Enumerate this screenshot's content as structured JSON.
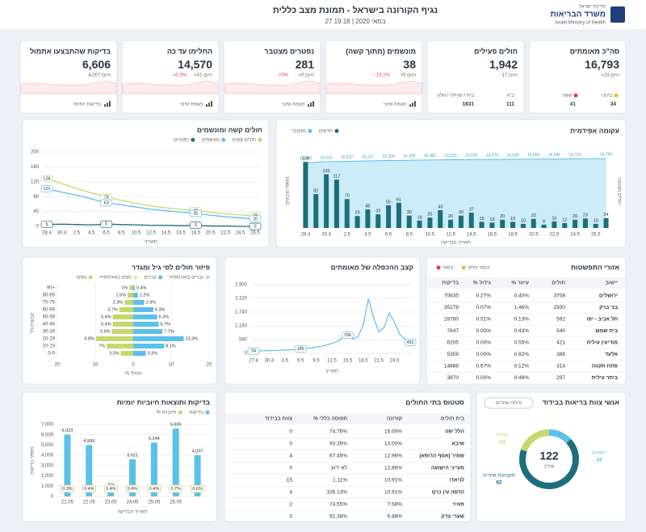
{
  "header": {
    "title": "נגיף הקורונה בישראל - תמונת מצב כללית",
    "subtitle": "27 במאי 2020 | 19:18",
    "logo": {
      "state": "מדינת ישראל",
      "ministry": "משרד הבריאות",
      "english": "Israel Ministry of Health"
    }
  },
  "kpis": [
    {
      "title": "סה\"כ מאומתים",
      "value": "16,793",
      "delta": "+24 היום",
      "breakdown": [
        {
          "label": "בינוני",
          "value": "34",
          "color": "#e6c229"
        },
        {
          "label": "קשה",
          "value": "41",
          "color": "#e8384f"
        }
      ]
    },
    {
      "title": "חולים פעילים",
      "value": "1,942",
      "delta": "-17 היום",
      "breakdown": [
        {
          "label": "ב\"ח",
          "value": "111"
        },
        {
          "label": "בית / קהילה / מלון",
          "value": "1831"
        }
      ]
    },
    {
      "title": "מונשמים (מתוך קשה)",
      "value": "38",
      "delta": "+5 היום",
      "delta_pct": "-15.2%",
      "footer": "מגמת שינוי"
    },
    {
      "title": "נפטרים מצטבר",
      "value": "281",
      "delta": "+0 היום",
      "delta_pct": "+0%",
      "footer": "מגמת שינוי"
    },
    {
      "title": "החלימו עד כה",
      "value": "14,570",
      "delta": "+41 היום",
      "delta_pct": "+0.3%",
      "footer": "מגמת שינוי"
    },
    {
      "title": "בדיקות שהתבצעו אתמול",
      "value": "6,606",
      "delta": "4,007 היום",
      "footer": "בדיקות יומיות"
    }
  ],
  "serious_chart": {
    "type": "line",
    "title": "חולים קשה ומונשמים",
    "xlabel": "תאריך",
    "grid": true,
    "categories": [
      "28.4",
      "30.4",
      "2.5",
      "4.5",
      "6.5",
      "8.5",
      "10.5",
      "12.5",
      "14.5",
      "16.5",
      "18.5",
      "20.5",
      "22.5",
      "24.5",
      "26.5"
    ],
    "ylim": [
      0,
      200
    ],
    "yticks": [
      0,
      40,
      80,
      120,
      160,
      200
    ],
    "series": [
      {
        "name": "חולים קשים",
        "color": "#c5d86d",
        "values": [
          128,
          115,
          102,
          90,
          78,
          70,
          62,
          55,
          50,
          46,
          42,
          38,
          34,
          31,
          28
        ]
      },
      {
        "name": "מונשמים",
        "color": "#5bc0eb",
        "values": [
          101,
          92,
          84,
          74,
          63,
          58,
          52,
          46,
          42,
          38,
          35,
          30,
          26,
          23,
          20
        ]
      },
      {
        "name": "נפטרים",
        "color": "#1f6f78",
        "values": [
          5,
          6,
          5,
          4,
          6,
          5,
          4,
          3,
          3,
          2,
          3,
          1,
          1,
          0,
          0
        ]
      }
    ]
  },
  "epi_chart": {
    "type": "bar",
    "title": "עקומה אפידמית",
    "xlabel": "תאריך הבדיקה",
    "ylabel": "מספר נדבקים",
    "y2label": "חולים מצטבר",
    "categories": [
      "28.4",
      null,
      "30.4",
      null,
      "2.5",
      null,
      "4.5",
      null,
      "6.5",
      null,
      "8.5",
      null,
      "10.5",
      null,
      "12.5",
      null,
      "14.5",
      null,
      "16.5",
      null,
      "18.5",
      null,
      "20.5",
      null,
      "22.5",
      null,
      "24.5",
      null,
      "26.5",
      null
    ],
    "ylim": [
      0,
      180
    ],
    "y2lim": [
      0,
      18000
    ],
    "series": [
      {
        "name": "חדשים",
        "color": "#1b6f7a",
        "values": [
          160,
          82,
          130,
          117,
          70,
          29,
          45,
          33,
          55,
          61,
          30,
          18,
          25,
          43,
          20,
          30,
          37,
          15,
          13,
          20,
          15,
          10,
          22,
          8,
          16,
          12,
          20,
          23,
          10,
          24
        ]
      },
      {
        "name": "מצטבר",
        "color": "#5bc0eb",
        "axis": "y2",
        "values": [
          15780,
          15900,
          16041,
          16090,
          16127,
          16180,
          16237,
          16290,
          16339,
          16365,
          16390,
          16430,
          16462,
          16490,
          16523,
          16540,
          16559,
          16570,
          16579,
          16605,
          16630,
          16645,
          16660,
          16672,
          16685,
          16700,
          16723,
          16750,
          16769,
          16793
        ],
        "value_labels": [
          "15,780",
          null,
          "16,041",
          null,
          "16,127",
          null,
          "16,237",
          null,
          "16,339",
          null,
          "16,390",
          null,
          "16,462",
          null,
          "16,523",
          null,
          "16,559",
          null,
          "16,579",
          null,
          "16,630",
          null,
          "16,660",
          null,
          "16,685",
          null,
          "16,723",
          null,
          null,
          "16,793"
        ]
      }
    ]
  },
  "age_chart": {
    "type": "bar",
    "orientation": "horizontal",
    "title": "פיזור חולים לפי גיל ומגדר",
    "xlabel": "% מכלל",
    "ylabel": "קבוצת גיל",
    "categories": [
      "90+",
      "80-89",
      "70-79",
      "60-69",
      "50-59",
      "40-49",
      "30-39",
      "20-29",
      "10-19",
      "0-9"
    ],
    "xlim": [
      0,
      20
    ],
    "xticks": [
      0,
      10,
      20
    ],
    "grid": true,
    "population_legend": [
      {
        "name": "גברים באוכלוסיה",
        "color": "#a9dcf3"
      },
      {
        "name": "נשים באוכלוסיה",
        "color": "#dde9ae"
      }
    ],
    "series": [
      {
        "name": "גברים",
        "color": "#5bc0eb",
        "values": [
          0.4,
          1.2,
          2.9,
          5.3,
          6.3,
          6.7,
          7.7,
          13.3,
          8.1,
          3.3
        ],
        "value_labels": [
          "0.4%",
          "1.2%",
          "2.9%",
          "5.3%",
          "6.3%",
          "6.7%",
          "7.7%",
          "13.3%",
          "8.1%",
          "3.3%"
        ]
      },
      {
        "name": "נשים",
        "color": "#c5d86d",
        "values": [
          1,
          1.5,
          2.3,
          3.7,
          5.4,
          5.4,
          5.6,
          9.8,
          7,
          3.3
        ],
        "value_labels": [
          "1%",
          "1.5%",
          "2.3%",
          "3.7%",
          "5.4%",
          "5.4%",
          "5.6%",
          "9.8%",
          "7%",
          "3.3%"
        ]
      }
    ]
  },
  "doubling_chart": {
    "type": "line",
    "title": "קצב ההכפלה של מאומתים",
    "xlabel": "תאריך",
    "color": "#5bc0eb",
    "grid": true,
    "categories": [
      "27.4",
      null,
      null,
      "30.4",
      null,
      null,
      "3.5",
      null,
      null,
      "6.5",
      null,
      null,
      "9.5",
      null,
      null,
      "12.5",
      null,
      null,
      "15.5",
      null,
      null,
      "18.5",
      null,
      null,
      "21.5",
      null,
      null,
      "24.5",
      null,
      null,
      null
    ],
    "values": [
      94,
      100,
      108,
      115,
      120,
      130,
      140,
      150,
      165,
      185,
      200,
      230,
      260,
      300,
      350,
      420,
      500,
      650,
      766,
      600,
      700,
      1200,
      2300,
      1500,
      900,
      1100,
      1700,
      1300,
      800,
      600,
      452
    ],
    "ylim": [
      0,
      2900
    ],
    "yticks": [
      0,
      580,
      {
        "value": 1160,
        "label": "1,160"
      },
      {
        "value": 1740,
        "label": "1,740"
      },
      {
        "value": 2320,
        "label": "2,320"
      },
      {
        "value": 2900,
        "label": "2,900"
      }
    ]
  },
  "regions": {
    "title": "אזורי התפשטות",
    "legend": [
      {
        "name": "בסגר",
        "color": "#e8384f"
      },
      {
        "name": "בסגר חלקי",
        "color": "#e6c229"
      }
    ],
    "columns": [
      "יישוב",
      "חולים",
      "% עיזור",
      "% גידול",
      "בדיקות"
    ],
    "rows": [
      [
        "ירושלים",
        "3708",
        "0.40%",
        "0.27%",
        "70635"
      ],
      [
        "בני ברק",
        "2930",
        "1.46%",
        "0.07%",
        "35279"
      ],
      [
        "תל אביב - יפו",
        "592",
        "0.13%",
        "0.51%",
        "28780"
      ],
      [
        "בית שמש",
        "540",
        "0.43%",
        "0.00%",
        "7647"
      ],
      [
        "מודיעין עילית",
        "421",
        "0.55%",
        "0.00%",
        "6205"
      ],
      [
        "אלעד",
        "388",
        "0.82%",
        "0.00%",
        "5359"
      ],
      [
        "פתח תקווה",
        "314",
        "0.12%",
        "0.67%",
        "14888"
      ],
      [
        "ביתר עילית",
        "297",
        "0.48%",
        "0.00%",
        "3870"
      ]
    ]
  },
  "tests_chart": {
    "type": "bar",
    "title": "בדיקות ותוצאות חיוביות יומיות",
    "xlabel": "תאריך הבדיקה",
    "ylabel": "מספר בדיקות",
    "categories": [
      "21.05",
      "22.05",
      "23.05",
      "24.05",
      "25.05",
      "26.05",
      null
    ],
    "ylim": [
      0,
      7000
    ],
    "yticks": [
      0,
      {
        "value": 1000,
        "label": "1,000"
      },
      {
        "value": 2000,
        "label": "2,000"
      },
      {
        "value": 3000,
        "label": "3,000"
      },
      {
        "value": 4000,
        "label": "4,000"
      },
      {
        "value": 5000,
        "label": "5,000"
      },
      {
        "value": 6000,
        "label": "6,000"
      },
      {
        "value": 7000,
        "label": "7,000"
      }
    ],
    "series": [
      {
        "name": "בדיקות",
        "color": "#5bc0eb",
        "values": [
          6023,
          4999,
          704,
          3621,
          5244,
          6606,
          4007
        ],
        "value_labels": [
          "6,023",
          "4,999",
          "704",
          "3,621",
          "5,244",
          "6,606",
          "4,007"
        ]
      },
      {
        "name": "% חיוביות",
        "color": "#c5d86d",
        "values": [
          0.3,
          0.4,
          0.4,
          0.4,
          0.4,
          0.7,
          0.6
        ],
        "value_labels": [
          "0.3%",
          "0.4%",
          "0.4%",
          "0.4%",
          "0.4%",
          "0.7%",
          "0.6%"
        ]
      }
    ]
  },
  "hospitals": {
    "title": "סטטוס בתי החולים",
    "columns": [
      "בית חולים",
      "קורונה",
      "% תפוסה כללי",
      "צוות בבידוד"
    ],
    "rows": [
      [
        "הלל יפה",
        "15.00%",
        "74.76%",
        "0"
      ],
      [
        "שיבא",
        "13.00%",
        "93.35%",
        "0"
      ],
      [
        "שמיר (אסף הרופא)",
        "12.96%",
        "67.45%",
        "4"
      ],
      [
        "מעייני הישועה",
        "12.86%",
        "לא ידוע",
        "0"
      ],
      [
        "לניאדו",
        "10.91%",
        "1.11%",
        "15"
      ],
      [
        "הדסה עין כרם",
        "10.91%",
        "105.13%",
        "4"
      ],
      [
        "מאיר",
        "7.58%",
        "74.55%",
        "2"
      ],
      [
        "שערי צדק",
        "5.88%",
        "92.38%",
        "0"
      ]
    ]
  },
  "staff_chart": {
    "type": "pie",
    "donut": true,
    "title": "אנשי צוות בריאות בבידוד",
    "button": "פילוח אחרים",
    "total": 122,
    "total_label": "סה\"כ",
    "categories": [
      "רופאים",
      "מקצועות אחרים",
      "אחיות"
    ],
    "values": [
      16,
      82,
      24
    ],
    "colors": [
      "#5bc0eb",
      "#1b6f7a",
      "#c5d86d"
    ]
  }
}
